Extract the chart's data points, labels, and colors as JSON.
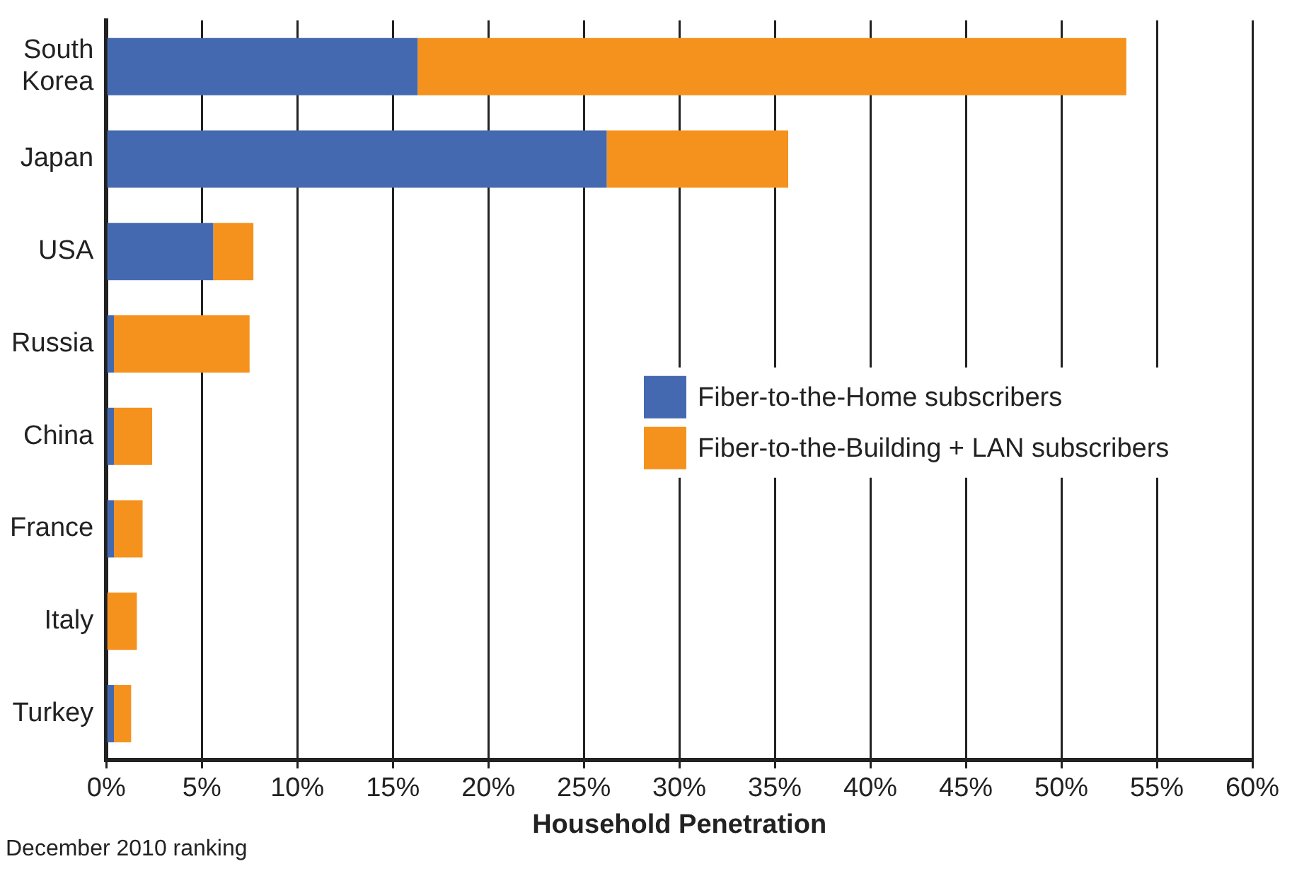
{
  "chart_data": {
    "type": "bar",
    "orientation": "horizontal",
    "stacked": true,
    "xlabel": "Household Penetration",
    "categories": [
      "South Korea",
      "Japan",
      "USA",
      "Russia",
      "China",
      "France",
      "Italy",
      "Turkey"
    ],
    "series": [
      {
        "name": "Fiber-to-the-Home subscribers",
        "color": "#4469b0",
        "values": [
          16.3,
          26.2,
          5.6,
          0.4,
          0.4,
          0.4,
          0,
          0.4
        ]
      },
      {
        "name": "Fiber-to-the-Building + LAN subscribers",
        "color": "#f5921e",
        "values": [
          37.1,
          9.5,
          2.1,
          7.1,
          2.0,
          1.5,
          1.6,
          0.9
        ]
      }
    ],
    "xlim": [
      0,
      60
    ],
    "xticks": [
      {
        "value": 0,
        "label": "0%"
      },
      {
        "value": 5,
        "label": "5%"
      },
      {
        "value": 10,
        "label": "10%"
      },
      {
        "value": 15,
        "label": "15%"
      },
      {
        "value": 20,
        "label": "20%"
      },
      {
        "value": 25,
        "label": "25%"
      },
      {
        "value": 30,
        "label": "30%"
      },
      {
        "value": 35,
        "label": "35%"
      },
      {
        "value": 40,
        "label": "40%"
      },
      {
        "value": 45,
        "label": "45%"
      },
      {
        "value": 50,
        "label": "50%"
      },
      {
        "value": 55,
        "label": "55%"
      },
      {
        "value": 60,
        "label": "60%"
      }
    ],
    "grid": "x",
    "legend": "right",
    "annotations": [
      "December 2010 ranking"
    ]
  }
}
